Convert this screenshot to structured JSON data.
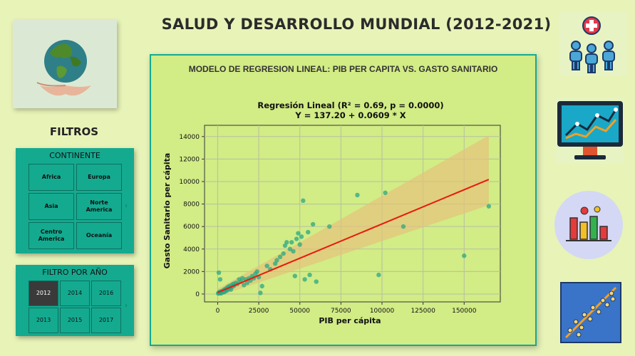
{
  "header": {
    "title": "SALUD Y DESARROLLO MUNDIAL (2012-2021)"
  },
  "sidebar": {
    "filters_label": "FILTROS",
    "continent_slicer": {
      "title": "CONTINENTE",
      "options": [
        "Africa",
        "Europa",
        "Asia",
        "Norte America",
        "Centro America",
        "Oceanía"
      ]
    },
    "year_slicer": {
      "title": "FILTRO POR AÑO",
      "options": [
        "2012",
        "2014",
        "2016",
        "2013",
        "2015",
        "2017"
      ],
      "selected": "2012"
    }
  },
  "panel": {
    "title": "MODELO DE REGRESION LINEAL: PIB PER CAPITA VS. GASTO SANITARIO"
  },
  "icons": [
    "health-group-icon",
    "monitor-growth-chart-icon",
    "bar-chart-analytics-icon",
    "scatter-trend-icon"
  ],
  "colors": {
    "accent": "#14aa90",
    "background": "#e8f3b8",
    "panel": "#d2ec86",
    "points": "#2aa882",
    "fit_line": "#e81a0e",
    "ci_band": "#e6c07a"
  },
  "chart_data": {
    "type": "scatter",
    "title_line1": "Regresión Lineal (R² = 0.69, p = 0.0000)",
    "title_line2": "Y = 137.20 + 0.0609 * X",
    "xlabel": "PIB per cápita",
    "ylabel": "Gasto Sanitario per cápita",
    "xlim": [
      -8000,
      172000
    ],
    "ylim": [
      -700,
      15000
    ],
    "xticks": [
      0,
      25000,
      50000,
      75000,
      100000,
      125000,
      150000
    ],
    "yticks": [
      0,
      2000,
      4000,
      6000,
      8000,
      10000,
      12000,
      14000
    ],
    "grid": true,
    "regression": {
      "intercept": 137.2,
      "slope": 0.0609,
      "x_range": [
        0,
        165000
      ]
    },
    "ci_band": {
      "at_min": [
        -200,
        450
      ],
      "at_max": [
        7900,
        14100
      ]
    },
    "points": [
      [
        300,
        50
      ],
      [
        600,
        120
      ],
      [
        900,
        80
      ],
      [
        1200,
        200
      ],
      [
        1500,
        100
      ],
      [
        1800,
        150
      ],
      [
        2100,
        60
      ],
      [
        2500,
        250
      ],
      [
        2800,
        180
      ],
      [
        3200,
        300
      ],
      [
        3600,
        150
      ],
      [
        4000,
        400
      ],
      [
        4400,
        220
      ],
      [
        4800,
        350
      ],
      [
        5200,
        500
      ],
      [
        5600,
        300
      ],
      [
        6000,
        600
      ],
      [
        6500,
        450
      ],
      [
        7000,
        700
      ],
      [
        7500,
        550
      ],
      [
        8000,
        400
      ],
      [
        8500,
        800
      ],
      [
        9000,
        650
      ],
      [
        9500,
        900
      ],
      [
        10000,
        750
      ],
      [
        11000,
        1000
      ],
      [
        12000,
        900
      ],
      [
        13000,
        1300
      ],
      [
        14000,
        1100
      ],
      [
        15000,
        1400
      ],
      [
        16000,
        800
      ],
      [
        17000,
        1300
      ],
      [
        18000,
        1000
      ],
      [
        19000,
        1400
      ],
      [
        20000,
        1200
      ],
      [
        21000,
        1600
      ],
      [
        22000,
        1400
      ],
      [
        23000,
        1800
      ],
      [
        24000,
        2000
      ],
      [
        25000,
        1500
      ],
      [
        26000,
        100
      ],
      [
        27000,
        700
      ],
      [
        30000,
        2500
      ],
      [
        32000,
        2200
      ],
      [
        35000,
        2700
      ],
      [
        36000,
        3000
      ],
      [
        38000,
        3300
      ],
      [
        40000,
        3600
      ],
      [
        41000,
        4300
      ],
      [
        42000,
        4600
      ],
      [
        44000,
        4000
      ],
      [
        45000,
        4600
      ],
      [
        46000,
        3800
      ],
      [
        47000,
        1600
      ],
      [
        48000,
        4900
      ],
      [
        49000,
        5400
      ],
      [
        50000,
        4400
      ],
      [
        51000,
        5100
      ],
      [
        52000,
        8300
      ],
      [
        53000,
        1300
      ],
      [
        55000,
        5500
      ],
      [
        56000,
        1700
      ],
      [
        58000,
        6200
      ],
      [
        60000,
        1100
      ],
      [
        68000,
        6000
      ],
      [
        85000,
        8800
      ],
      [
        98000,
        1700
      ],
      [
        102000,
        9000
      ],
      [
        113000,
        6000
      ],
      [
        150000,
        3400
      ],
      [
        165000,
        7800
      ],
      [
        700,
        1900
      ],
      [
        1500,
        1300
      ]
    ]
  }
}
